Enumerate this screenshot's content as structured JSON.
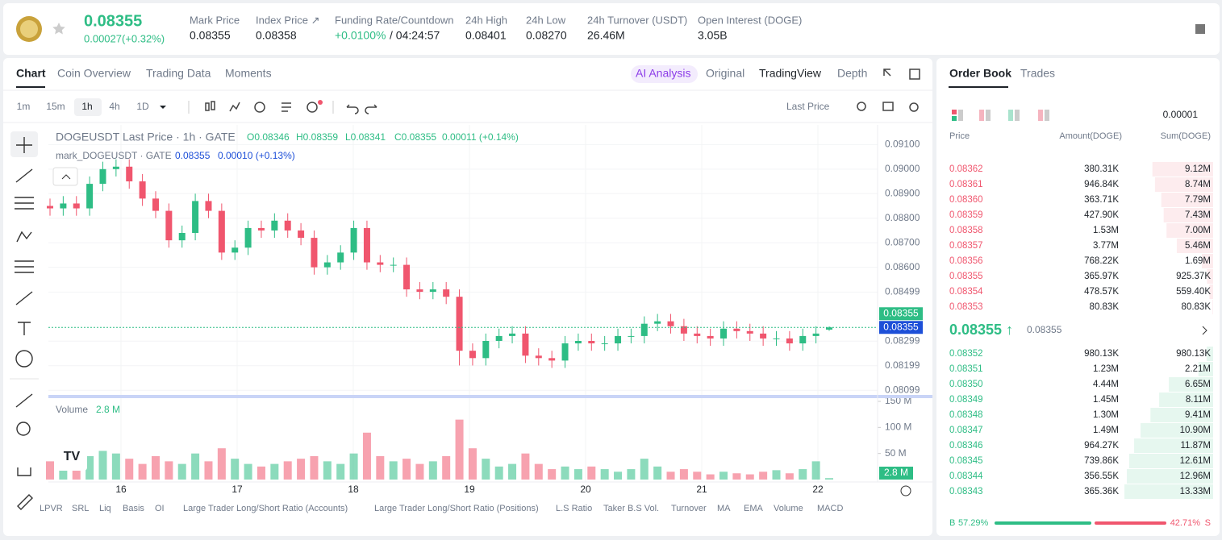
{
  "header": {
    "price": "0.08355",
    "change": "0.00027(+0.32%)",
    "stats": [
      {
        "label": "Mark Price",
        "value": "0.08355"
      },
      {
        "label": "Index Price ↗",
        "value": "0.08358"
      },
      {
        "label": "Funding Rate/Countdown",
        "value": "+0.0100%",
        "extra": "/ 04:24:57"
      },
      {
        "label": "24h High",
        "value": "0.08401"
      },
      {
        "label": "24h Low",
        "value": "0.08270"
      },
      {
        "label": "24h Turnover (USDT)",
        "value": "26.46M"
      },
      {
        "label": "Open Interest (DOGE)",
        "value": "3.05B"
      }
    ]
  },
  "tabs": [
    "Chart",
    "Coin Overview",
    "Trading Data",
    "Moments"
  ],
  "views": [
    "AI Analysis",
    "Original",
    "TradingView",
    "Depth"
  ],
  "intervals": [
    "1m",
    "15m",
    "1h",
    "4h",
    "1D"
  ],
  "price_source": "Last Price",
  "chart": {
    "type": "candlestick",
    "legend1": {
      "name": "DOGEUSDT Last Price · 1h · GATE",
      "o": "O0.08346",
      "h": "H0.08359",
      "l": "L0.08341",
      "c": "C0.08355",
      "chg": "0.00011 (+0.14%)"
    },
    "legend2": {
      "name": "mark_DOGEUSDT · GATE",
      "value": "0.08355",
      "chg": "0.00010 (+0.13%)"
    },
    "volume_title": "Volume",
    "volume_value": "2.8 M",
    "last_tag": "0.08355",
    "mark_tag": "0.08355",
    "last_price": 0.08355,
    "volume_tag": "2.8 M",
    "x_labels": [
      "16",
      "17",
      "18",
      "19",
      "20",
      "21",
      "22"
    ],
    "ylim": [
      0.0808,
      0.0918
    ],
    "yticks": [
      {
        "value": 0.091,
        "label": "0.09100"
      },
      {
        "value": 0.09,
        "label": "0.09000"
      },
      {
        "value": 0.089,
        "label": "0.08900"
      },
      {
        "value": 0.088,
        "label": "0.08800"
      },
      {
        "value": 0.087,
        "label": "0.08700"
      },
      {
        "value": 0.086,
        "label": "0.08600"
      },
      {
        "value": 0.08499,
        "label": "0.08499"
      },
      {
        "value": 0.08299,
        "label": "0.08299"
      },
      {
        "value": 0.08199,
        "label": "0.08199"
      },
      {
        "value": 0.08099,
        "label": "0.08099"
      }
    ],
    "volume_ylim": [
      0,
      150
    ],
    "volume_ticks": [
      {
        "value": 150,
        "label": "150 M"
      },
      {
        "value": 100,
        "label": "100 M"
      },
      {
        "value": 50,
        "label": "50 M"
      }
    ],
    "open": [
      0.0885,
      0.0884,
      0.0886,
      0.0884,
      0.0894,
      0.09,
      0.0901,
      0.0895,
      0.0888,
      0.0883,
      0.0871,
      0.0874,
      0.0887,
      0.0883,
      0.0866,
      0.0868,
      0.0876,
      0.0875,
      0.0879,
      0.0875,
      0.0872,
      0.086,
      0.0862,
      0.0866,
      0.0876,
      0.0862,
      0.0861,
      0.0861,
      0.0851,
      0.085,
      0.0851,
      0.0848,
      0.0826,
      0.0823,
      0.083,
      0.0832,
      0.0833,
      0.0824,
      0.0823,
      0.0822,
      0.0829,
      0.083,
      0.0829,
      0.0829,
      0.0832,
      0.0832,
      0.0837,
      0.0838,
      0.0836,
      0.0833,
      0.0832,
      0.0831,
      0.0835,
      0.0834,
      0.0833,
      0.0831,
      0.0831,
      0.0829,
      0.0832,
      0.08346
    ],
    "high": [
      0.0888,
      0.0889,
      0.0889,
      0.0897,
      0.0903,
      0.0904,
      0.0904,
      0.0898,
      0.0891,
      0.0886,
      0.0877,
      0.089,
      0.089,
      0.0886,
      0.0871,
      0.0879,
      0.0879,
      0.0882,
      0.0882,
      0.0878,
      0.0875,
      0.0865,
      0.0869,
      0.0879,
      0.0879,
      0.0865,
      0.0864,
      0.0864,
      0.0854,
      0.0854,
      0.0854,
      0.0851,
      0.0829,
      0.0833,
      0.0835,
      0.0836,
      0.0836,
      0.0827,
      0.0826,
      0.0832,
      0.0833,
      0.0833,
      0.0832,
      0.0835,
      0.0835,
      0.084,
      0.0841,
      0.0841,
      0.0839,
      0.0836,
      0.0835,
      0.0838,
      0.0838,
      0.0837,
      0.0836,
      0.0834,
      0.0834,
      0.0835,
      0.0836,
      0.08359
    ],
    "low": [
      0.0881,
      0.0881,
      0.0881,
      0.0881,
      0.0891,
      0.0897,
      0.0892,
      0.0885,
      0.088,
      0.0868,
      0.0868,
      0.0871,
      0.088,
      0.0863,
      0.0863,
      0.0865,
      0.0872,
      0.0872,
      0.0872,
      0.0869,
      0.0857,
      0.0857,
      0.0859,
      0.0863,
      0.0859,
      0.0858,
      0.0858,
      0.0848,
      0.0847,
      0.0847,
      0.0845,
      0.082,
      0.082,
      0.082,
      0.0827,
      0.0829,
      0.0821,
      0.082,
      0.0819,
      0.0819,
      0.0826,
      0.0826,
      0.0826,
      0.0826,
      0.0829,
      0.0829,
      0.0834,
      0.0833,
      0.083,
      0.0829,
      0.0828,
      0.0828,
      0.0831,
      0.083,
      0.0828,
      0.0828,
      0.0826,
      0.0826,
      0.0829,
      0.08341
    ],
    "close": [
      0.0884,
      0.0886,
      0.0884,
      0.0894,
      0.09,
      0.0901,
      0.0895,
      0.0888,
      0.0883,
      0.0871,
      0.0874,
      0.0887,
      0.0883,
      0.0866,
      0.0868,
      0.0876,
      0.0875,
      0.0879,
      0.0875,
      0.0872,
      0.086,
      0.0862,
      0.0866,
      0.0876,
      0.0862,
      0.0861,
      0.0861,
      0.0851,
      0.085,
      0.0851,
      0.0848,
      0.0826,
      0.0823,
      0.083,
      0.0832,
      0.0833,
      0.0824,
      0.0823,
      0.0822,
      0.0829,
      0.083,
      0.0829,
      0.0829,
      0.0832,
      0.0832,
      0.0837,
      0.0838,
      0.0836,
      0.0833,
      0.0832,
      0.0831,
      0.0835,
      0.0834,
      0.0833,
      0.0831,
      0.0831,
      0.0829,
      0.0832,
      0.0833,
      0.08355
    ],
    "volume": [
      35,
      40,
      30,
      45,
      55,
      50,
      40,
      30,
      45,
      35,
      30,
      50,
      35,
      60,
      40,
      30,
      25,
      30,
      35,
      40,
      45,
      35,
      30,
      50,
      90,
      45,
      35,
      40,
      30,
      35,
      45,
      115,
      60,
      40,
      25,
      30,
      50,
      30,
      20,
      25,
      20,
      25,
      20,
      15,
      20,
      40,
      25,
      15,
      20,
      15,
      10,
      15,
      12,
      10,
      15,
      18,
      12,
      20,
      35,
      2.8
    ],
    "up_color": "#2ebd85",
    "down_color": "#f0566e"
  },
  "indicators": [
    "LPVR",
    "SRL",
    "Liq",
    "Basis",
    "OI",
    "Large Trader Long/Short Ratio (Accounts)",
    "Large Trader Long/Short Ratio (Positions)",
    "L.S Ratio",
    "Taker B.S Vol.",
    "Turnover",
    "MA",
    "EMA",
    "Volume",
    "MACD"
  ],
  "order_book": {
    "tabs": [
      "Order Book",
      "Trades"
    ],
    "precision": "0.00001",
    "columns": [
      "Price",
      "Amount(DOGE)",
      "Sum(DOGE)"
    ],
    "asks": [
      {
        "price": "0.08362",
        "amount": "380.31K",
        "sum": {
          "value": 9.12,
          "label": "9.12M"
        }
      },
      {
        "price": "0.08361",
        "amount": "946.84K",
        "sum": {
          "value": 8.74,
          "label": "8.74M"
        }
      },
      {
        "price": "0.08360",
        "amount": "363.71K",
        "sum": {
          "value": 7.79,
          "label": "7.79M"
        }
      },
      {
        "price": "0.08359",
        "amount": "427.90K",
        "sum": {
          "value": 7.43,
          "label": "7.43M"
        }
      },
      {
        "price": "0.08358",
        "amount": "1.53M",
        "sum": {
          "value": 7,
          "label": "7.00M"
        }
      },
      {
        "price": "0.08357",
        "amount": "3.77M",
        "sum": {
          "value": 5.46,
          "label": "5.46M"
        }
      },
      {
        "price": "0.08356",
        "amount": "768.22K",
        "sum": {
          "value": 1.69,
          "label": "1.69M"
        }
      },
      {
        "price": "0.08355",
        "amount": "365.97K",
        "sum": {
          "value": 0.92537,
          "label": "925.37K"
        }
      },
      {
        "price": "0.08354",
        "amount": "478.57K",
        "sum": {
          "value": 0.5594,
          "label": "559.40K"
        }
      },
      {
        "price": "0.08353",
        "amount": "80.83K",
        "sum": {
          "value": 0.08083,
          "label": "80.83K"
        }
      }
    ],
    "last": "0.08355 ↑",
    "mark": "0.08355",
    "bids": [
      {
        "price": "0.08352",
        "amount": "980.13K",
        "sum": {
          "value": 0.98013,
          "label": "980.13K"
        }
      },
      {
        "price": "0.08351",
        "amount": "1.23M",
        "sum": {
          "value": 2.21,
          "label": "2.21M"
        }
      },
      {
        "price": "0.08350",
        "amount": "4.44M",
        "sum": {
          "value": 6.65,
          "label": "6.65M"
        }
      },
      {
        "price": "0.08349",
        "amount": "1.45M",
        "sum": {
          "value": 8.11,
          "label": "8.11M"
        }
      },
      {
        "price": "0.08348",
        "amount": "1.30M",
        "sum": {
          "value": 9.41,
          "label": "9.41M"
        }
      },
      {
        "price": "0.08347",
        "amount": "1.49M",
        "sum": {
          "value": 10.9,
          "label": "10.90M"
        }
      },
      {
        "price": "0.08346",
        "amount": "964.27K",
        "sum": {
          "value": 11.87,
          "label": "11.87M"
        }
      },
      {
        "price": "0.08345",
        "amount": "739.86K",
        "sum": {
          "value": 12.61,
          "label": "12.61M"
        }
      },
      {
        "price": "0.08344",
        "amount": "356.55K",
        "sum": {
          "value": 12.96,
          "label": "12.96M"
        }
      },
      {
        "price": "0.08343",
        "amount": "365.36K",
        "sum": {
          "value": 13.33,
          "label": "13.33M"
        }
      }
    ],
    "buy_prefix": "B",
    "sell_suffix": "S",
    "buy": {
      "value": 57.29,
      "label": "57.29%"
    },
    "sell": {
      "value": 42.71,
      "label": "42.71%"
    }
  }
}
